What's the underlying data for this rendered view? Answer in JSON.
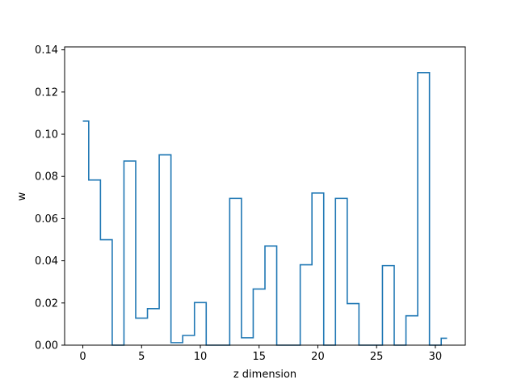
{
  "chart_data": {
    "type": "line",
    "drawstyle": "steps-mid",
    "xlabel": "z dimension",
    "ylabel": "w",
    "xlim": [
      -1.55,
      32.55
    ],
    "ylim": [
      0,
      0.1414
    ],
    "xticks": [
      0,
      5,
      10,
      15,
      20,
      25,
      30
    ],
    "yticks": [
      0.0,
      0.02,
      0.04,
      0.06,
      0.08,
      0.1,
      0.12,
      0.14
    ],
    "x": [
      0,
      1,
      2,
      3,
      4,
      5,
      6,
      7,
      8,
      9,
      10,
      11,
      12,
      13,
      14,
      15,
      16,
      17,
      18,
      19,
      20,
      21,
      22,
      23,
      24,
      25,
      26,
      27,
      28,
      29,
      30,
      31
    ],
    "series": [
      {
        "color": "#1f77b4",
        "values": [
          0.1062,
          0.0783,
          0.05,
          0.0,
          0.0873,
          0.0128,
          0.0173,
          0.0902,
          0.0012,
          0.0046,
          0.0202,
          0.0,
          0.0,
          0.0696,
          0.0035,
          0.0266,
          0.047,
          0.0,
          0.0,
          0.0381,
          0.0721,
          0.0,
          0.0696,
          0.0197,
          0.0,
          0.0,
          0.0377,
          0.0,
          0.0139,
          0.1292,
          0.0,
          0.0033
        ]
      }
    ],
    "grid": false
  }
}
